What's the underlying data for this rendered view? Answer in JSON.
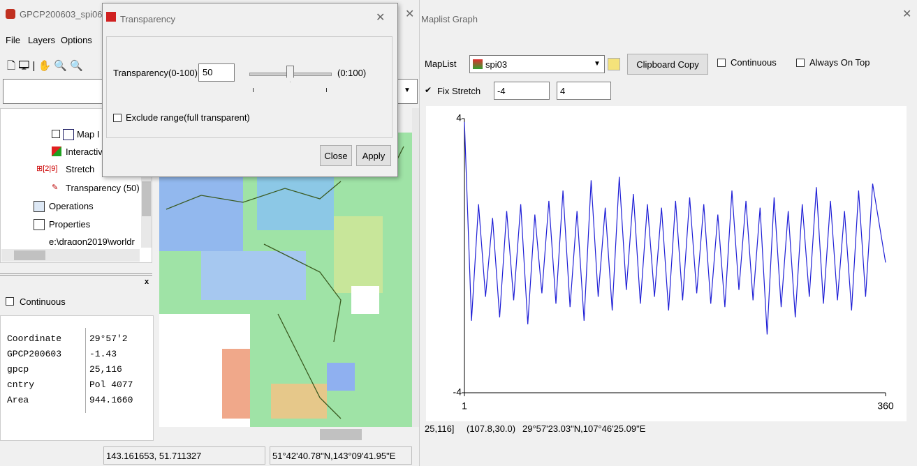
{
  "main_window": {
    "title": "GPCP200603_spi06",
    "menu": [
      "File",
      "Layers",
      "Options"
    ],
    "tree": [
      "Map I",
      "Interactiv",
      "Stretch",
      "Transparency (50)",
      "Operations",
      "Properties",
      "e:\\dragon2019\\worldr"
    ],
    "continuous": "Continuous",
    "table": {
      "rows": [
        [
          "Coordinate",
          "29°57'2"
        ],
        [
          "GPCP200603",
          "-1.43"
        ],
        [
          "gpcp",
          "25,116"
        ],
        [
          "cntry",
          "Pol 4077"
        ],
        [
          "Area",
          "944.1660"
        ]
      ]
    },
    "status": [
      "143.161653, 51.711327",
      "51°42'40.78\"N,143°09'41.95\"E"
    ]
  },
  "dialog": {
    "title": "Transparency",
    "label": "Transparency(0-100)",
    "value": "50",
    "range": "(0:100)",
    "exclude": "Exclude range(full transparent)",
    "buttons": [
      "Close",
      "Apply"
    ]
  },
  "graph_window": {
    "title": "Maplist Graph",
    "maplist_label": "MapList",
    "maplist_value": "spi03",
    "copy_button": "Clipboard Copy",
    "continuous": "Continuous",
    "always_on_top": "Always On Top",
    "fix_stretch": "Fix Stretch",
    "stretch_min": "-4",
    "stretch_max": "4",
    "status": [
      "25,116]",
      "(107.8,30.0)",
      "29°57'23.03\"N,107°46'25.09\"E"
    ]
  },
  "chart_data": {
    "type": "line",
    "x": [
      1,
      7,
      13,
      19,
      25,
      31,
      37,
      43,
      49,
      55,
      61,
      67,
      73,
      79,
      85,
      91,
      97,
      103,
      109,
      115,
      121,
      127,
      133,
      139,
      145,
      151,
      157,
      163,
      169,
      175,
      181,
      187,
      193,
      199,
      205,
      211,
      217,
      223,
      229,
      235,
      241,
      247,
      253,
      259,
      265,
      271,
      277,
      283,
      289,
      295,
      301,
      307,
      313,
      319,
      325,
      331,
      337,
      343,
      349,
      360
    ],
    "values": [
      3.9,
      -1.9,
      1.5,
      -1.2,
      1.1,
      -1.8,
      1.3,
      -1.3,
      1.5,
      -2.0,
      1.2,
      -1.1,
      1.6,
      -1.4,
      1.9,
      -1.5,
      1.3,
      -1.9,
      2.2,
      -1.2,
      1.4,
      -1.6,
      2.3,
      -1.0,
      1.8,
      -1.4,
      1.5,
      -1.2,
      1.4,
      -1.6,
      1.6,
      -1.3,
      1.7,
      -1.1,
      1.5,
      -1.4,
      1.2,
      -1.5,
      1.9,
      -1.0,
      1.6,
      -1.3,
      1.4,
      -2.3,
      1.7,
      -1.5,
      1.3,
      -1.8,
      1.5,
      -1.2,
      2.0,
      -1.4,
      1.6,
      -1.3,
      1.3,
      -1.6,
      1.9,
      -1.2,
      2.1,
      -0.2
    ],
    "color": "#1f1fd6",
    "xlim": [
      1,
      360
    ],
    "ylim": [
      -4,
      4
    ],
    "xticks": [
      1,
      360
    ],
    "yticks": [
      -4,
      4
    ]
  }
}
